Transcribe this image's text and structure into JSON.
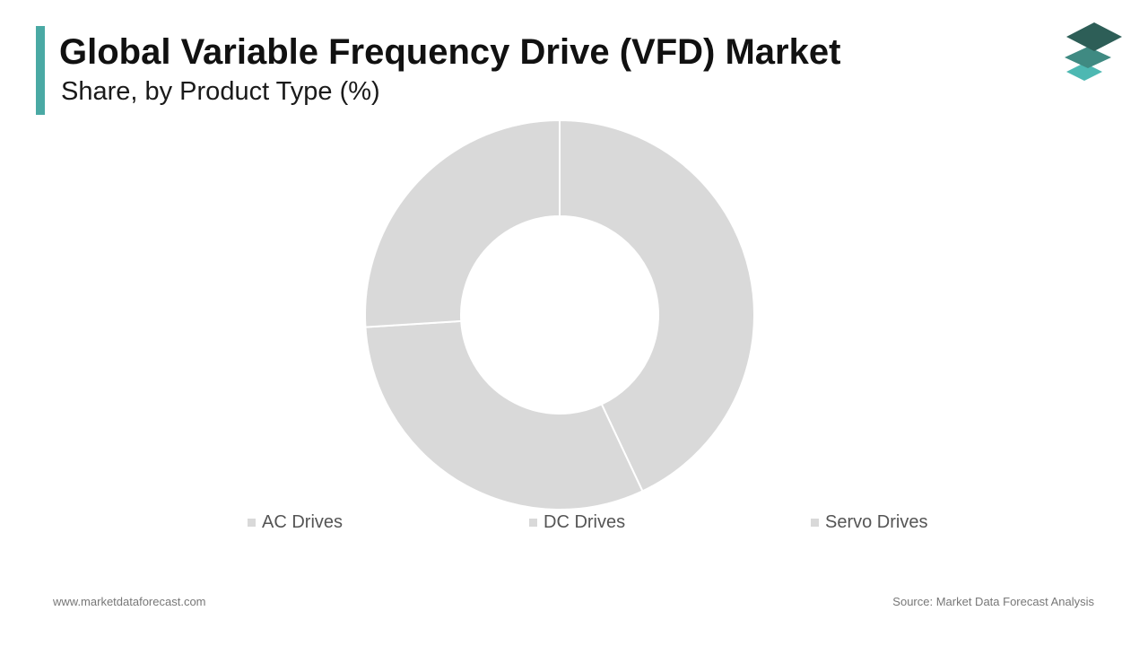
{
  "header": {
    "title": "Global Variable Frequency Drive (VFD) Market",
    "subtitle": "Share, by Product Type (%)"
  },
  "colors": {
    "accent": "#4aa9a4",
    "slice": "#d9d9d9",
    "slice_border": "#ffffff",
    "logo_top": "#2d5e57",
    "logo_mid": "#3f8a82",
    "logo_bottom": "#4db8b2"
  },
  "logo": {
    "icon": "stacked-layers-icon"
  },
  "chart_data": {
    "type": "pie",
    "donut": true,
    "categories": [
      "AC Drives",
      "DC Drives",
      "Servo Drives"
    ],
    "values": [
      43,
      31,
      26
    ],
    "legend_position": "bottom"
  },
  "footer": {
    "website": "www.marketdataforecast.com",
    "source": "Source: Market Data Forecast Analysis"
  }
}
